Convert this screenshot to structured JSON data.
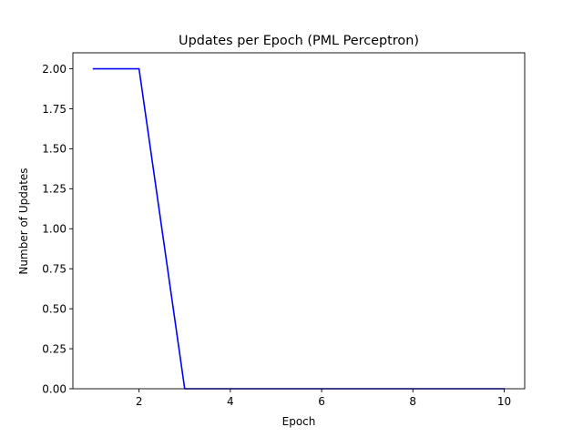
{
  "chart_data": {
    "type": "line",
    "title": "Updates per Epoch (PML Perceptron)",
    "xlabel": "Epoch",
    "ylabel": "Number of Updates",
    "xlim": [
      0.55,
      10.45
    ],
    "ylim": [
      0,
      2.1
    ],
    "x_ticks": [
      2,
      4,
      6,
      8,
      10
    ],
    "x_tick_labels": [
      "2",
      "4",
      "6",
      "8",
      "10"
    ],
    "y_ticks": [
      0,
      0.25,
      0.5,
      0.75,
      1.0,
      1.25,
      1.5,
      1.75,
      2.0
    ],
    "y_tick_labels": [
      "0.00",
      "0.25",
      "0.50",
      "0.75",
      "1.00",
      "1.25",
      "1.50",
      "1.75",
      "2.00"
    ],
    "grid": false,
    "series": [
      {
        "color": "#0000ff",
        "x": [
          1,
          2,
          3,
          4,
          5,
          6,
          7,
          8,
          9,
          10
        ],
        "y": [
          2,
          2,
          0,
          0,
          0,
          0,
          0,
          0,
          0,
          0
        ]
      }
    ]
  }
}
